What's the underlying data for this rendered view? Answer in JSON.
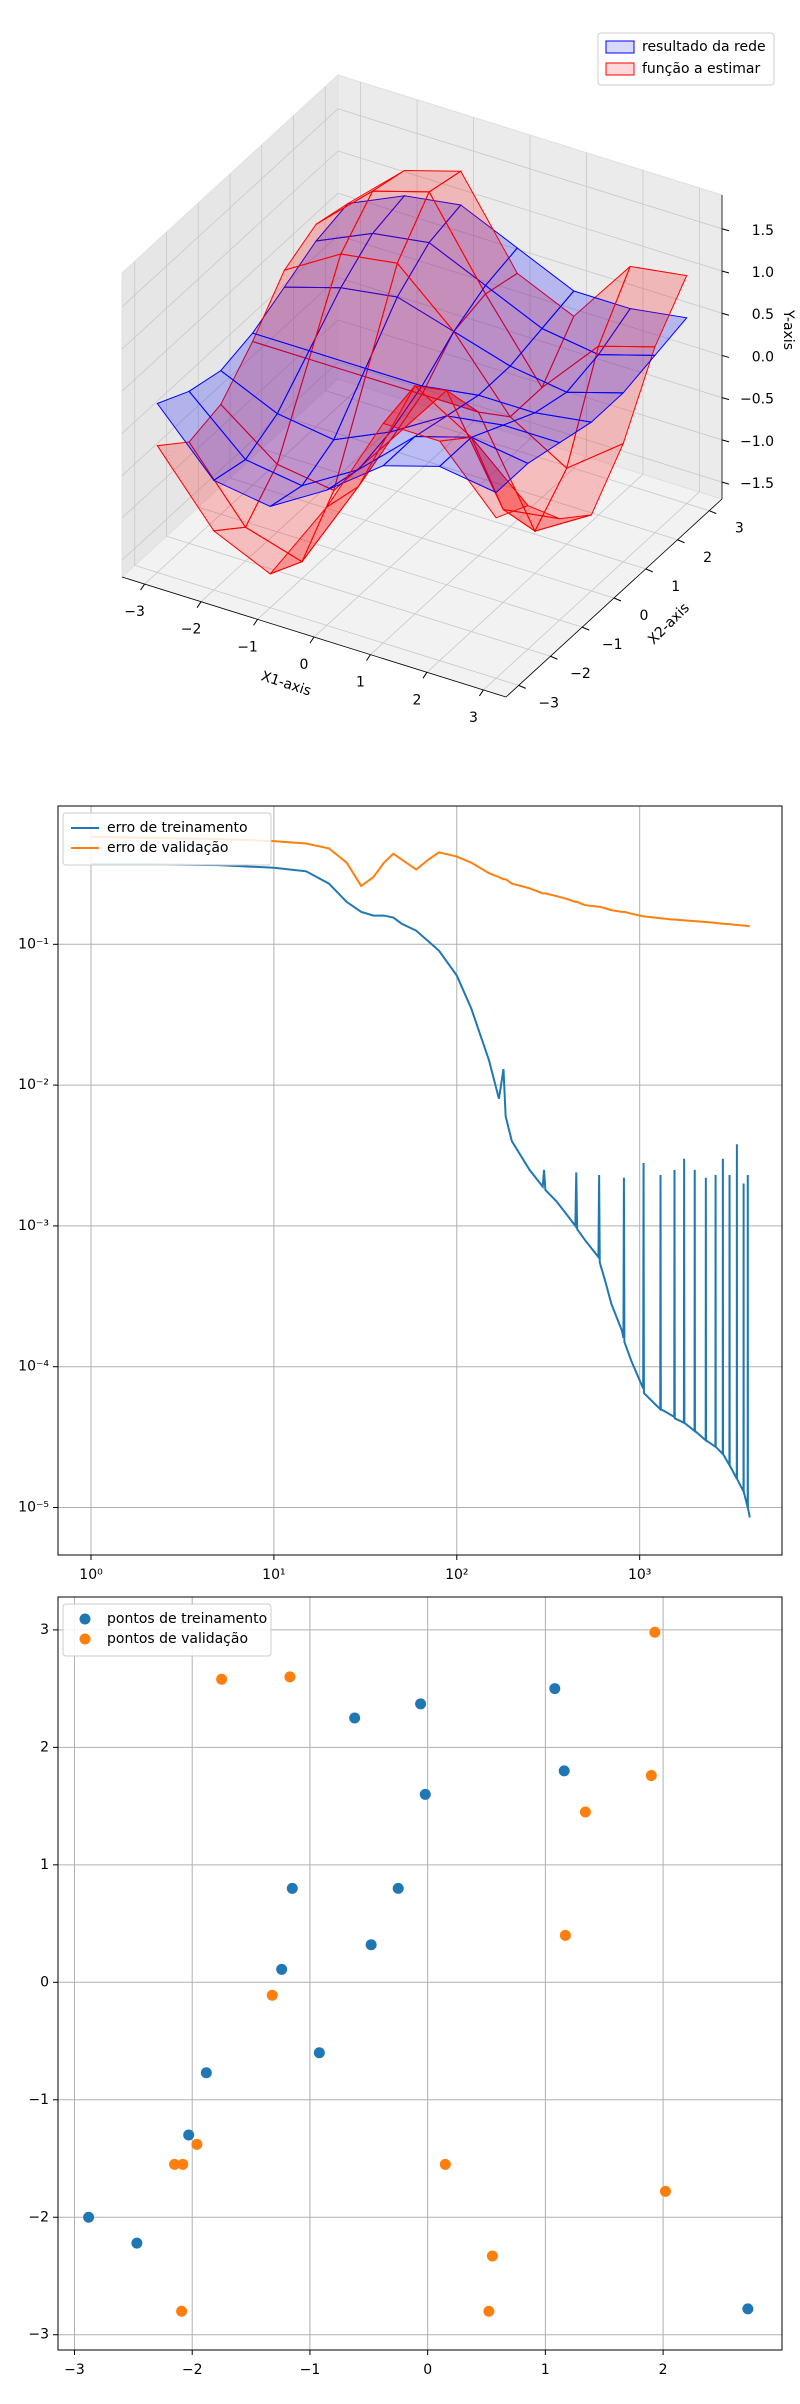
{
  "chart_data": [
    {
      "type": "surface3d",
      "x1": [
        -3,
        -2,
        -1,
        0,
        1,
        2,
        3
      ],
      "x2": [
        -3,
        -2,
        -1,
        0,
        1,
        2,
        3
      ],
      "x1lim": [
        -3.4,
        3.4
      ],
      "x2lim": [
        -3.4,
        3.4
      ],
      "zlim": [
        -1.7,
        1.9
      ],
      "x1ticks": [
        {
          "value": -3,
          "label": "−3"
        },
        {
          "value": -2,
          "label": "−2"
        },
        {
          "value": -1,
          "label": "−1"
        },
        0,
        1,
        2,
        3
      ],
      "x2ticks": [
        {
          "value": -3,
          "label": "−3"
        },
        {
          "value": -2,
          "label": "−2"
        },
        {
          "value": -1,
          "label": "−1"
        },
        0,
        1,
        2,
        3
      ],
      "zticks": [
        {
          "value": -1.5,
          "label": "−1.5"
        },
        {
          "value": -1,
          "label": "−1.0"
        },
        {
          "value": -0.5,
          "label": "−0.5"
        },
        {
          "value": 0,
          "label": "0.0"
        },
        0.5,
        {
          "value": 1,
          "label": "1.0"
        },
        1.5
      ],
      "x1label": "X1-axis",
      "x2label": "X2-axis",
      "zlabel": "Y-axis",
      "legend": "upper right",
      "series": [
        {
          "name": "resultado da rede",
          "color": "#0000ff",
          "z": [
            [
              0.3,
              0.1,
              0.0,
              0.1,
              0.3,
              0.5,
              0.6
            ],
            [
              -0.4,
              -0.5,
              -0.3,
              0.1,
              0.5,
              0.8,
              0.9
            ],
            [
              -0.5,
              -0.6,
              -0.4,
              0.1,
              0.6,
              0.9,
              1.0
            ],
            [
              -0.1,
              -0.2,
              -0.1,
              0.1,
              0.4,
              0.6,
              0.7
            ],
            [
              0.4,
              0.4,
              0.3,
              0.2,
              0.2,
              0.3,
              0.4
            ],
            [
              0.6,
              0.6,
              0.4,
              0.2,
              0.1,
              0.2,
              0.4
            ],
            [
              0.5,
              0.5,
              0.4,
              0.3,
              0.3,
              0.4,
              0.5
            ]
          ]
        },
        {
          "name": "função a estimar",
          "color": "#ff0000",
          "z": [
            [
              -0.2,
              -0.5,
              -0.4,
              0.0,
              0.5,
              0.7,
              0.6
            ],
            [
              -1.0,
              -1.3,
              -0.9,
              0.0,
              0.9,
              1.3,
              1.2
            ],
            [
              -1.3,
              -1.5,
              -1.0,
              0.0,
              1.0,
              1.5,
              1.4
            ],
            [
              -0.3,
              -0.4,
              -0.2,
              0.0,
              0.4,
              0.5,
              0.4
            ],
            [
              0.9,
              1.0,
              0.6,
              0.0,
              -0.4,
              -0.4,
              0.1
            ],
            [
              0.9,
              0.6,
              -0.6,
              -1.2,
              -0.8,
              0.3,
              0.9
            ],
            [
              0.2,
              0.0,
              -0.5,
              -0.8,
              -0.3,
              0.5,
              1.0
            ]
          ]
        }
      ]
    },
    {
      "type": "line",
      "log_x": true,
      "log_y": true,
      "grid": true,
      "legend": "upper left",
      "xlim": [
        0.66,
        6000
      ],
      "ylim": [
        4.6e-06,
        0.96
      ],
      "xticks": [
        {
          "value": 1,
          "label": "10⁰"
        },
        {
          "value": 10,
          "label": "10¹"
        },
        {
          "value": 100,
          "label": "10²"
        },
        {
          "value": 1000,
          "label": "10³"
        }
      ],
      "yticks": [
        {
          "value": 1e-05,
          "label": "10⁻⁵"
        },
        {
          "value": 0.0001,
          "label": "10⁻⁴"
        },
        {
          "value": 0.001,
          "label": "10⁻³"
        },
        {
          "value": 0.01,
          "label": "10⁻²"
        },
        {
          "value": 0.1,
          "label": "10⁻¹"
        }
      ],
      "x": [
        1,
        2,
        5,
        10,
        15,
        20,
        25,
        30,
        35,
        40,
        45,
        50,
        60,
        70,
        80,
        100,
        120,
        150,
        170,
        180,
        185,
        200,
        250,
        295,
        300,
        305,
        350,
        400,
        445,
        450,
        455,
        500,
        595,
        600,
        605,
        650,
        700,
        800,
        815,
        820,
        825,
        900,
        1000,
        1045,
        1050,
        1055,
        1200,
        1295,
        1300,
        1305,
        1500,
        1545,
        1550,
        1555,
        1745,
        1750,
        1755,
        1995,
        2000,
        2005,
        2295,
        2300,
        2305,
        2595,
        2600,
        2605,
        2845,
        2850,
        2855,
        3095,
        3100,
        3105,
        3395,
        3400,
        3405,
        3695,
        3700,
        3705,
        3895,
        3900,
        3905,
        4000
      ],
      "series": [
        {
          "name": "erro de treinamento",
          "color": "#1f77b4",
          "values": [
            0.37,
            0.37,
            0.365,
            0.35,
            0.33,
            0.27,
            0.2,
            0.17,
            0.16,
            0.16,
            0.155,
            0.14,
            0.125,
            0.105,
            0.09,
            0.06,
            0.035,
            0.015,
            0.008,
            0.013,
            0.006,
            0.004,
            0.0025,
            0.0019,
            0.0025,
            0.0018,
            0.0015,
            0.0012,
            0.001,
            0.0024,
            0.00095,
            0.0008,
            0.0006,
            0.0023,
            0.00055,
            0.0004,
            0.00028,
            0.00018,
            0.00016,
            0.0022,
            0.00015,
            0.00011,
            8e-05,
            7e-05,
            0.0028,
            6.5e-05,
            5.5e-05,
            5e-05,
            0.0023,
            5e-05,
            4.5e-05,
            4.4e-05,
            0.0025,
            4.3e-05,
            4e-05,
            0.003,
            4e-05,
            3.5e-05,
            0.0025,
            3.5e-05,
            3e-05,
            0.0022,
            3e-05,
            2.7e-05,
            0.0023,
            2.7e-05,
            2.4e-05,
            0.003,
            2.4e-05,
            2e-05,
            0.0023,
            2e-05,
            1.6e-05,
            0.0038,
            1.6e-05,
            1.3e-05,
            0.002,
            1.3e-05,
            1e-05,
            0.0023,
            1e-05,
            8.5e-06
          ]
        },
        {
          "name": "erro de validação",
          "color": "#ff7f0e",
          "values": [
            0.58,
            0.57,
            0.56,
            0.54,
            0.52,
            0.48,
            0.38,
            0.26,
            0.3,
            0.38,
            0.44,
            0.4,
            0.34,
            0.4,
            0.45,
            0.42,
            0.38,
            0.32,
            0.3,
            0.29,
            0.29,
            0.27,
            0.25,
            0.23,
            0.23,
            0.23,
            0.22,
            0.21,
            0.2,
            0.2,
            0.2,
            0.19,
            0.185,
            0.185,
            0.185,
            0.18,
            0.175,
            0.17,
            0.17,
            0.17,
            0.17,
            0.165,
            0.16,
            0.158,
            0.158,
            0.158,
            0.155,
            0.153,
            0.153,
            0.153,
            0.15,
            0.15,
            0.15,
            0.15,
            0.148,
            0.148,
            0.148,
            0.146,
            0.146,
            0.146,
            0.144,
            0.144,
            0.144,
            0.142,
            0.142,
            0.142,
            0.14,
            0.14,
            0.14,
            0.139,
            0.139,
            0.139,
            0.137,
            0.137,
            0.137,
            0.136,
            0.136,
            0.136,
            0.135,
            0.135,
            0.135,
            0.134
          ]
        }
      ]
    },
    {
      "type": "scatter",
      "grid": true,
      "legend": "upper left",
      "xlim": [
        -3.14,
        3.01
      ],
      "ylim": [
        -3.13,
        3.28
      ],
      "xticks": [
        {
          "value": -3,
          "label": "−3"
        },
        {
          "value": -2,
          "label": "−2"
        },
        {
          "value": -1,
          "label": "−1"
        },
        0,
        1,
        2
      ],
      "yticks": [
        {
          "value": -3,
          "label": "−3"
        },
        {
          "value": -2,
          "label": "−2"
        },
        {
          "value": -1,
          "label": "−1"
        },
        0,
        1,
        2,
        3
      ],
      "series": [
        {
          "name": "pontos de treinamento",
          "color": "#1f77b4",
          "x": [
            -2.88,
            -2.47,
            -2.03,
            -1.88,
            -1.24,
            -1.15,
            -0.92,
            -0.62,
            -0.48,
            -0.25,
            -0.06,
            -0.02,
            1.08,
            1.16,
            2.72
          ],
          "y": [
            -2.0,
            -2.22,
            -1.3,
            -0.77,
            0.11,
            0.8,
            -0.6,
            2.25,
            0.32,
            0.8,
            2.37,
            1.6,
            2.5,
            1.8,
            -2.78
          ]
        },
        {
          "name": "pontos de validação",
          "color": "#ff7f0e",
          "x": [
            -1.75,
            -1.17,
            -1.32,
            -2.15,
            -2.08,
            -1.96,
            -2.09,
            0.15,
            0.55,
            0.52,
            1.17,
            1.34,
            1.9,
            1.93,
            2.02
          ],
          "y": [
            2.58,
            2.6,
            -0.11,
            -1.55,
            -1.55,
            -1.38,
            -2.8,
            -1.55,
            -2.33,
            -2.8,
            0.4,
            1.45,
            1.76,
            2.98,
            -1.78
          ]
        }
      ]
    }
  ]
}
